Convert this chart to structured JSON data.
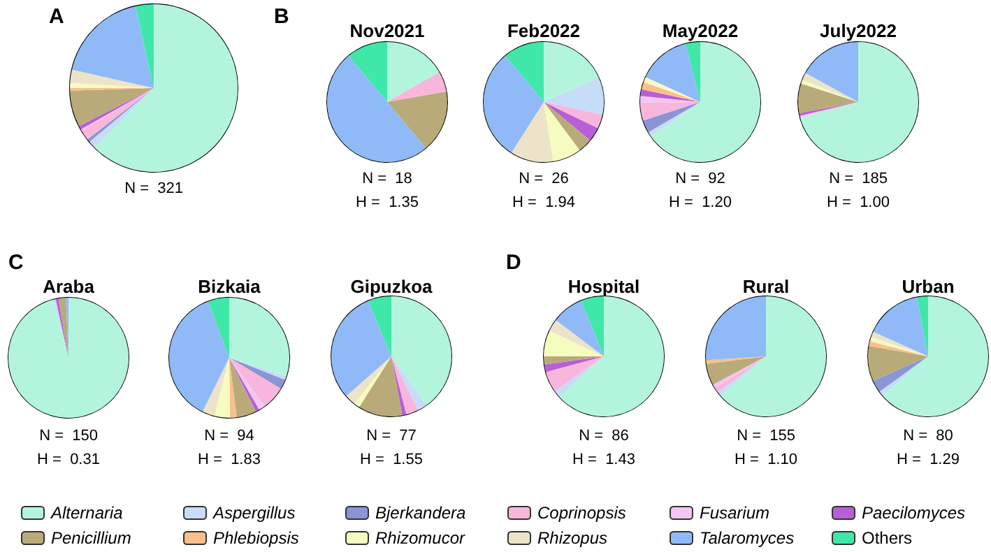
{
  "chart_data": {
    "type": "pie",
    "categories": [
      "Alternaria",
      "Aspergillus",
      "Bjerkandera",
      "Coprinopsis",
      "Fusarium",
      "Paecilomyces",
      "Penicillium",
      "Phlebiopsis",
      "Rhizomucor",
      "Rhizopus",
      "Talaromyces",
      "Others"
    ],
    "colors": [
      "#b3f5dc",
      "#c6dcf7",
      "#8a95d4",
      "#f8b6dc",
      "#f2c6f2",
      "#b85ed8",
      "#b9ab79",
      "#f8c08c",
      "#f6fbc0",
      "#ece3c9",
      "#8fbaf7",
      "#3fe8a9"
    ],
    "series": [
      {
        "values": [
          62.4,
          1.5,
          0.6,
          2,
          0.3,
          0.7,
          7,
          0.5,
          1,
          2.5,
          18,
          3.5
        ]
      },
      {
        "name": "Nov2021",
        "values": [
          16.7,
          0,
          0,
          5.5,
          0,
          0,
          16.7,
          0,
          0,
          0,
          50,
          11.1
        ]
      },
      {
        "name": "Feb2022",
        "values": [
          18.4,
          10,
          0,
          3.8,
          0,
          3.8,
          3.8,
          0,
          7.7,
          11.5,
          30,
          11
        ]
      },
      {
        "name": "May2022",
        "values": [
          65.3,
          1.3,
          3.4,
          4.8,
          1.8,
          1.8,
          0,
          2,
          1.4,
          0,
          14.3,
          3.9
        ]
      },
      {
        "name": "July2022",
        "values": [
          70.8,
          0,
          0,
          0,
          0.5,
          0.7,
          8,
          0,
          1,
          2,
          17,
          0
        ]
      },
      {
        "name": "Araba",
        "values": [
          95.9,
          0.7,
          0,
          0,
          0,
          0.7,
          2,
          0,
          0,
          0,
          0.7,
          0
        ]
      },
      {
        "name": "Bizkaia",
        "values": [
          30,
          1,
          2.6,
          6.4,
          1.7,
          1,
          5.3,
          1.8,
          4.2,
          3.3,
          37,
          5.7
        ]
      },
      {
        "name": "Gipuzkoa",
        "values": [
          40.1,
          2.6,
          0,
          3.3,
          0,
          1.1,
          11.9,
          0,
          1.5,
          3,
          30.2,
          6.3
        ]
      },
      {
        "name": "Hospital",
        "values": [
          63.3,
          1.9,
          0,
          5.6,
          0,
          2,
          2.2,
          0,
          7,
          3.3,
          8.6,
          6.1
        ]
      },
      {
        "name": "Rural",
        "values": [
          63.7,
          1,
          0,
          1.5,
          1,
          0,
          5.8,
          1,
          0,
          0,
          26,
          0
        ]
      },
      {
        "name": "Urban",
        "values": [
          63.7,
          1.3,
          3.3,
          0,
          0,
          0,
          9.5,
          1.2,
          1.2,
          1.5,
          15.3,
          3
        ]
      }
    ],
    "annotations": [
      "A",
      "N =  321",
      "B",
      "N =  18",
      "H =  1.35",
      "N =  26",
      "H =  1.94",
      "N =  92",
      "H =  1.20",
      "N =  185",
      "H =  1.00",
      "C",
      "N =  150",
      "H =  0.31",
      "N =  94",
      "H =  1.83",
      "N =  77",
      "H =  1.55",
      "D",
      "N =  86",
      "H =  1.43",
      "N =  155",
      "H =  1.10",
      "N =  80",
      "H =  1.29"
    ],
    "legend": "bottom"
  }
}
